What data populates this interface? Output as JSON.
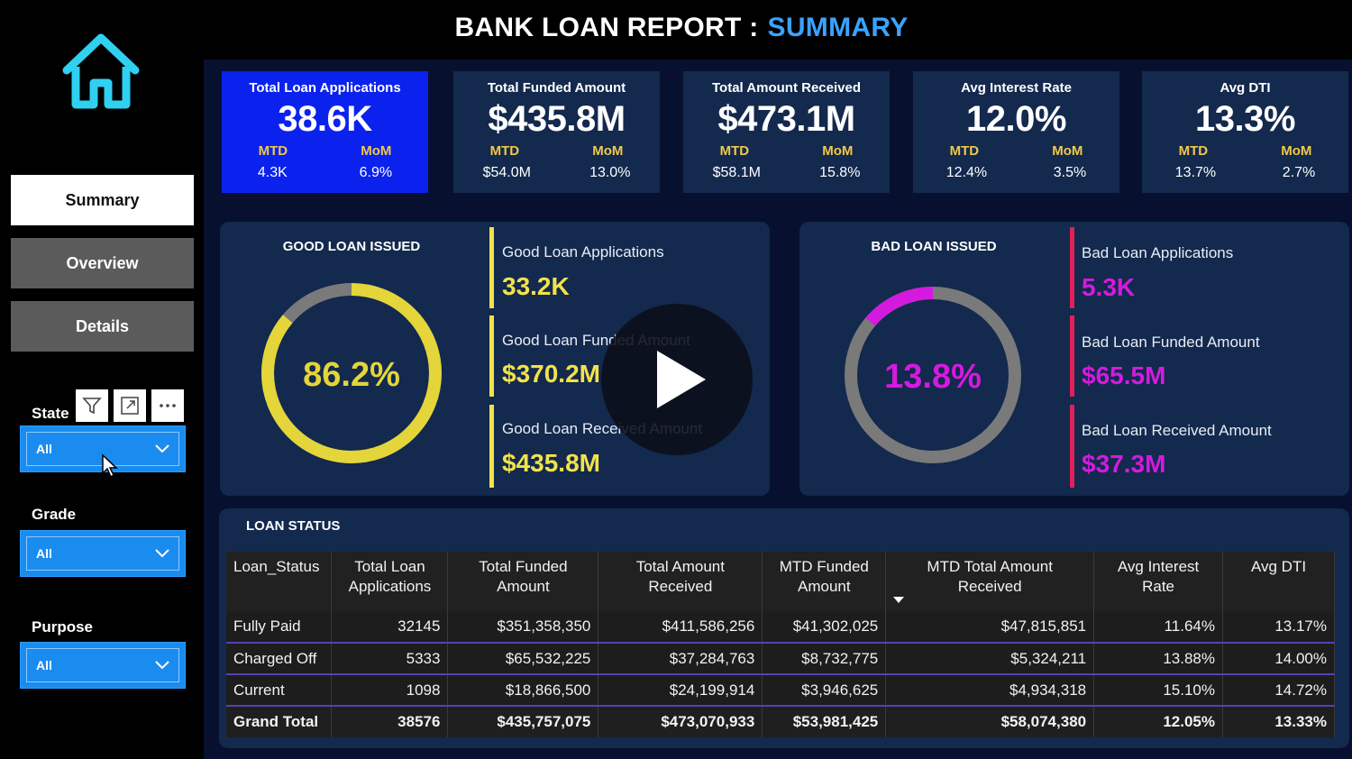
{
  "header": {
    "title_main": "BANK LOAN REPORT :",
    "title_accent": "SUMMARY"
  },
  "sidebar": {
    "nav": [
      {
        "label": "Summary",
        "active": true
      },
      {
        "label": "Overview",
        "active": false
      },
      {
        "label": "Details",
        "active": false
      }
    ],
    "filters": [
      {
        "label": "State",
        "value": "All"
      },
      {
        "label": "Grade",
        "value": "All"
      },
      {
        "label": "Purpose",
        "value": "All"
      }
    ],
    "tools": [
      "filter-icon",
      "focus-mode-icon",
      "more-options-icon"
    ]
  },
  "kpis": [
    {
      "title": "Total Loan Applications",
      "value": "38.6K",
      "mtd_label": "MTD",
      "mom_label": "MoM",
      "mtd": "4.3K",
      "mom": "6.9%"
    },
    {
      "title": "Total Funded Amount",
      "value": "$435.8M",
      "mtd_label": "MTD",
      "mom_label": "MoM",
      "mtd": "$54.0M",
      "mom": "13.0%"
    },
    {
      "title": "Total Amount Received",
      "value": "$473.1M",
      "mtd_label": "MTD",
      "mom_label": "MoM",
      "mtd": "$58.1M",
      "mom": "15.8%"
    },
    {
      "title": "Avg Interest Rate",
      "value": "12.0%",
      "mtd_label": "MTD",
      "mom_label": "MoM",
      "mtd": "12.4%",
      "mom": "3.5%"
    },
    {
      "title": "Avg DTI",
      "value": "13.3%",
      "mtd_label": "MTD",
      "mom_label": "MoM",
      "mtd": "13.7%",
      "mom": "2.7%"
    }
  ],
  "good_loan": {
    "title": "GOOD LOAN ISSUED",
    "percent_label": "86.2%",
    "percent": 0.862,
    "color": "#e3d53a",
    "stats": [
      {
        "label": "Good Loan Applications",
        "value": "33.2K"
      },
      {
        "label": "Good Loan Funded Amount",
        "value": "$370.2M"
      },
      {
        "label": "Good Loan Received Amount",
        "value": "$435.8M"
      }
    ]
  },
  "bad_loan": {
    "title": "BAD LOAN ISSUED",
    "percent_label": "13.8%",
    "percent": 0.138,
    "color": "#d41adf",
    "stats": [
      {
        "label": "Bad Loan Applications",
        "value": "5.3K"
      },
      {
        "label": "Bad Loan Funded Amount",
        "value": "$65.5M"
      },
      {
        "label": "Bad Loan Received Amount",
        "value": "$37.3M"
      }
    ]
  },
  "loan_status": {
    "title": "LOAN STATUS",
    "columns": [
      "Loan_Status",
      "Total Loan Applications",
      "Total Funded Amount",
      "Total Amount Received",
      "MTD Funded Amount",
      "MTD Total Amount Received",
      "Avg Interest Rate",
      "Avg DTI"
    ],
    "rows": [
      [
        "Fully Paid",
        "32145",
        "$351,358,350",
        "$411,586,256",
        "$41,302,025",
        "$47,815,851",
        "11.64%",
        "13.17%"
      ],
      [
        "Charged Off",
        "5333",
        "$65,532,225",
        "$37,284,763",
        "$8,732,775",
        "$5,324,211",
        "13.88%",
        "14.00%"
      ],
      [
        "Current",
        "1098",
        "$18,866,500",
        "$24,199,914",
        "$3,946,625",
        "$4,934,318",
        "15.10%",
        "14.72%"
      ]
    ],
    "total": [
      "Grand Total",
      "38576",
      "$435,757,075",
      "$473,070,933",
      "$53,981,425",
      "$58,074,380",
      "12.05%",
      "13.33%"
    ]
  },
  "colors": {
    "accent_blue": "#3aa3ff",
    "kpi_highlight": "#0b22ef",
    "panel": "#13294d",
    "good": "#e3d53a",
    "bad": "#d41adf"
  }
}
